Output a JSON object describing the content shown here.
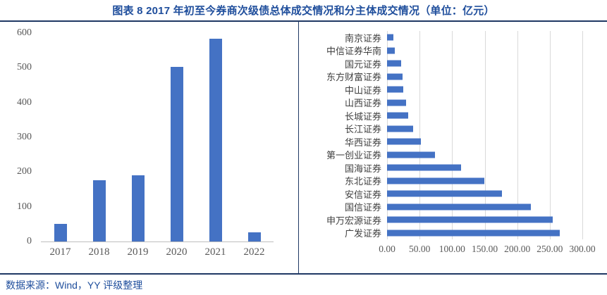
{
  "title": "图表 8 2017 年初至今券商次级债总体成交情况和分主体成交情况（单位：亿元）",
  "source": "数据来源：Wind，YY 评级整理",
  "colors": {
    "bar": "#4472C4",
    "title_text": "#1F4E9C",
    "table_border": "#1F3864",
    "tick_text": "#595959",
    "gridline": "#D9D9D9",
    "axis_line": "#BFBFBF"
  },
  "chart_data": [
    {
      "type": "bar",
      "orientation": "vertical",
      "categories": [
        "2017",
        "2018",
        "2019",
        "2020",
        "2021",
        "2022"
      ],
      "values": [
        51,
        176,
        190,
        502,
        583,
        26
      ],
      "ylim": [
        0,
        600
      ],
      "yticks": [
        0,
        100,
        200,
        300,
        400,
        500,
        600
      ],
      "grid": false,
      "legend": false
    },
    {
      "type": "bar",
      "orientation": "horizontal",
      "categories": [
        "南京证券",
        "中信证券华南",
        "国元证券",
        "东方财富证券",
        "中山证券",
        "山西证券",
        "长城证券",
        "长江证券",
        "华西证券",
        "第一创业证券",
        "国海证券",
        "东北证券",
        "安信证券",
        "国信证券",
        "申万宏源证券",
        "广发证券"
      ],
      "values": [
        10,
        12,
        22,
        24,
        25,
        29,
        33,
        40,
        52,
        74,
        114,
        149,
        177,
        221,
        254,
        265
      ],
      "xlim": [
        0,
        300
      ],
      "xticks": [
        "0.00",
        "50.00",
        "100.00",
        "150.00",
        "200.00",
        "250.00",
        "300.00"
      ],
      "grid": true,
      "legend": false
    }
  ]
}
